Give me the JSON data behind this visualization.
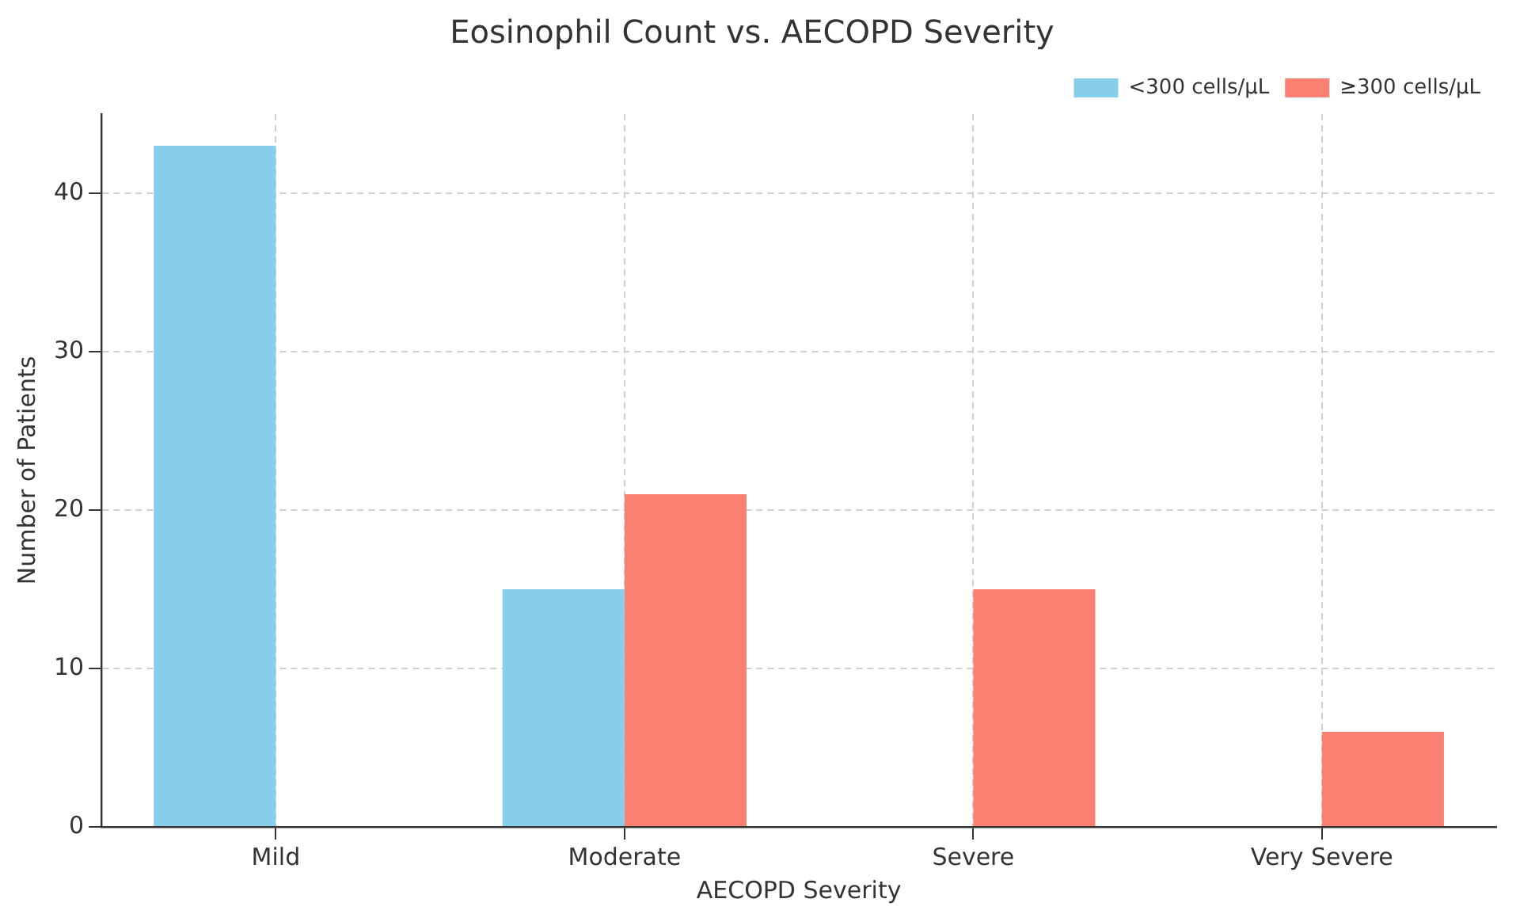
{
  "chart_data": {
    "type": "bar",
    "title": "Eosinophil Count vs. AECOPD Severity",
    "xlabel": "AECOPD Severity",
    "ylabel": "Number of Patients",
    "categories": [
      "Mild",
      "Moderate",
      "Severe",
      "Very Severe"
    ],
    "series": [
      {
        "name": "<300 cells/μL",
        "color": "#87ceeb",
        "values": [
          43,
          15,
          0,
          0
        ]
      },
      {
        "name": "≥300 cells/μL",
        "color": "#fa8072",
        "values": [
          0,
          21,
          15,
          6
        ]
      }
    ],
    "ylim": [
      0,
      45
    ],
    "yticks": [
      0,
      10,
      20,
      30,
      40
    ],
    "grid": true,
    "legend": "top right"
  }
}
